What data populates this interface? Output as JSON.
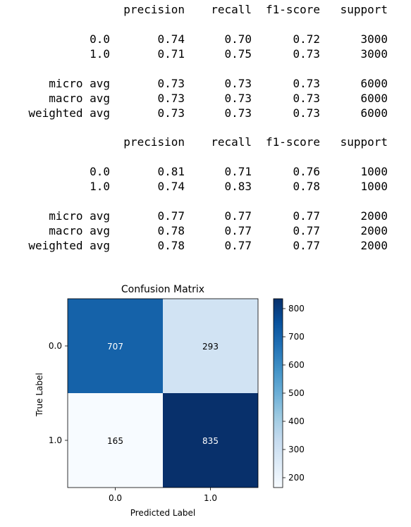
{
  "reports": [
    {
      "columns": [
        "precision",
        "recall",
        "f1-score",
        "support"
      ],
      "rows": [
        {
          "label": "0.0",
          "values": [
            "0.74",
            "0.70",
            "0.72",
            "3000"
          ]
        },
        {
          "label": "1.0",
          "values": [
            "0.71",
            "0.75",
            "0.73",
            "3000"
          ]
        },
        {
          "label": "micro avg",
          "values": [
            "0.73",
            "0.73",
            "0.73",
            "6000"
          ]
        },
        {
          "label": "macro avg",
          "values": [
            "0.73",
            "0.73",
            "0.73",
            "6000"
          ]
        },
        {
          "label": "weighted avg",
          "values": [
            "0.73",
            "0.73",
            "0.73",
            "6000"
          ]
        }
      ]
    },
    {
      "columns": [
        "precision",
        "recall",
        "f1-score",
        "support"
      ],
      "rows": [
        {
          "label": "0.0",
          "values": [
            "0.81",
            "0.71",
            "0.76",
            "1000"
          ]
        },
        {
          "label": "1.0",
          "values": [
            "0.74",
            "0.83",
            "0.78",
            "1000"
          ]
        },
        {
          "label": "micro avg",
          "values": [
            "0.77",
            "0.77",
            "0.77",
            "2000"
          ]
        },
        {
          "label": "macro avg",
          "values": [
            "0.78",
            "0.77",
            "0.77",
            "2000"
          ]
        },
        {
          "label": "weighted avg",
          "values": [
            "0.78",
            "0.77",
            "0.77",
            "2000"
          ]
        }
      ]
    }
  ],
  "chart_data": {
    "type": "heatmap",
    "title": "Confusion Matrix",
    "xlabel": "Predicted Label",
    "ylabel": "True Label",
    "x_categories": [
      "0.0",
      "1.0"
    ],
    "y_categories": [
      "0.0",
      "1.0"
    ],
    "values": [
      [
        707,
        293
      ],
      [
        165,
        835
      ]
    ],
    "colormap": "Blues",
    "colorbar_ticks": [
      200,
      300,
      400,
      500,
      600,
      700,
      800
    ],
    "colorbar_range": [
      165,
      835
    ],
    "grid": false,
    "legend": "colorbar-right"
  }
}
